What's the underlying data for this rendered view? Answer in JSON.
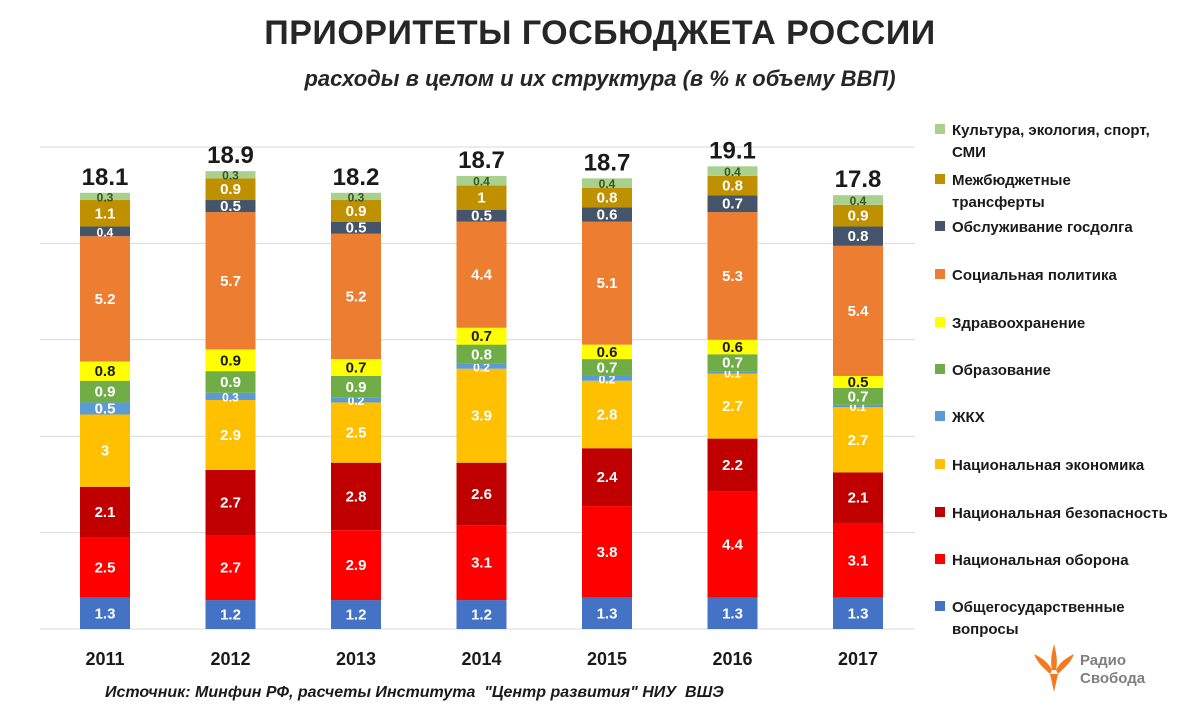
{
  "title": "ПРИОРИТЕТЫ ГОСБЮДЖЕТА РОССИИ",
  "subtitle": "расходы в целом и их структура (в % к объему ВВП)",
  "source": "Источник: Минфин РФ, расчеты Института  \"Центр развития\" НИУ  ВШЭ",
  "logo": {
    "line1": "Радио",
    "line2": "Свобода",
    "icon": "radio-svoboda-logo-icon",
    "color": "#f47a20"
  },
  "chart_data": {
    "type": "bar",
    "stacked": true,
    "categories": [
      "2011",
      "2012",
      "2013",
      "2014",
      "2015",
      "2016",
      "2017"
    ],
    "totals": [
      "18.1",
      "18.9",
      "18.2",
      "18.7",
      "18.7",
      "19.1",
      "17.8"
    ],
    "series": [
      {
        "name": "Общегосударственные вопросы",
        "color": "#4472c4",
        "label_color": "#ffffff",
        "values": [
          1.3,
          1.2,
          1.2,
          1.2,
          1.3,
          1.3,
          1.3
        ]
      },
      {
        "name": "Национальная оборона",
        "color": "#ff0000",
        "label_color": "#ffffff",
        "values": [
          2.5,
          2.7,
          2.9,
          3.1,
          3.8,
          4.4,
          3.1
        ]
      },
      {
        "name": "Национальная безопасность",
        "color": "#c00000",
        "label_color": "#ffffff",
        "values": [
          2.1,
          2.7,
          2.8,
          2.6,
          2.4,
          2.2,
          2.1
        ]
      },
      {
        "name": "Национальная экономика",
        "color": "#ffc000",
        "label_color": "#ffffff",
        "values": [
          3,
          2.9,
          2.5,
          3.9,
          2.8,
          2.7,
          2.7
        ]
      },
      {
        "name": "ЖКХ",
        "color": "#5b9bd5",
        "label_color": "#ffffff",
        "values": [
          0.5,
          0.3,
          0.2,
          0.2,
          0.2,
          0.1,
          0.1
        ]
      },
      {
        "name": "Образование",
        "color": "#70ad47",
        "label_color": "#ffffff",
        "values": [
          0.9,
          0.9,
          0.9,
          0.8,
          0.7,
          0.7,
          0.7
        ]
      },
      {
        "name": "Здравоохранение",
        "color": "#ffff00",
        "label_color": "#1a1a1a",
        "values": [
          0.8,
          0.9,
          0.7,
          0.7,
          0.6,
          0.6,
          0.5
        ]
      },
      {
        "name": "Социальная политика",
        "color": "#ed7d31",
        "label_color": "#ffffff",
        "values": [
          5.2,
          5.7,
          5.2,
          4.4,
          5.1,
          5.3,
          5.4
        ]
      },
      {
        "name": "Обслуживание госдолга",
        "color": "#44546a",
        "label_color": "#ffffff",
        "values": [
          0.4,
          0.5,
          0.5,
          0.5,
          0.6,
          0.7,
          0.8
        ]
      },
      {
        "name": "Межбюджетные трансферты",
        "color": "#bf9000",
        "label_color": "#ffffff",
        "values": [
          1.1,
          0.9,
          0.9,
          1,
          0.8,
          0.8,
          0.9
        ]
      },
      {
        "name": "Культура, экология, спорт, СМИ",
        "color": "#a9d18e",
        "label_color": "#375623",
        "values": [
          0.3,
          0.3,
          0.3,
          0.4,
          0.4,
          0.4,
          0.4
        ]
      }
    ],
    "ylim": [
      0,
      20
    ],
    "grid": true,
    "legend_position": "right",
    "legend": [
      {
        "lines": [
          "Культура, экология, спорт,",
          "СМИ"
        ],
        "color": "#a9d18e"
      },
      {
        "lines": [
          "Межбюджетные",
          "трансферты"
        ],
        "color": "#bf9000"
      },
      {
        "lines": [
          "Обслуживание госдолга"
        ],
        "color": "#44546a"
      },
      {
        "lines": [
          "Социальная политика"
        ],
        "color": "#ed7d31"
      },
      {
        "lines": [
          "Здравоохранение"
        ],
        "color": "#ffff00"
      },
      {
        "lines": [
          "Образование"
        ],
        "color": "#70ad47"
      },
      {
        "lines": [
          "ЖКХ"
        ],
        "color": "#5b9bd5"
      },
      {
        "lines": [
          "Национальная экономика"
        ],
        "color": "#ffc000"
      },
      {
        "lines": [
          "Национальная безопасность"
        ],
        "color": "#c00000"
      },
      {
        "lines": [
          "Национальная оборона"
        ],
        "color": "#ff0000"
      },
      {
        "lines": [
          "Общегосударственные",
          "вопросы"
        ],
        "color": "#4472c4"
      }
    ]
  }
}
